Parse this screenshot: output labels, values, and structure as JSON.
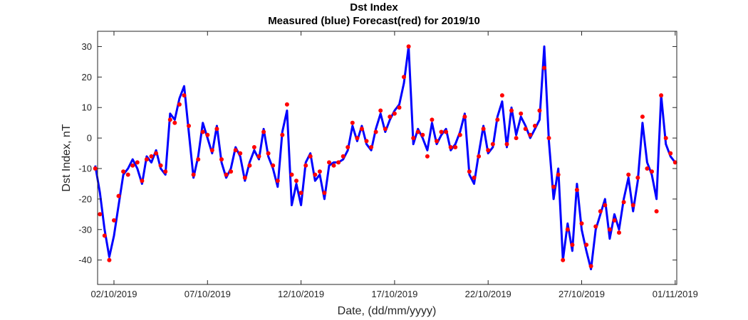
{
  "chart_data": {
    "type": "line",
    "title": "Dst Index",
    "subtitle": "Measured (blue) Forecast(red) for 2019/10",
    "xlabel": "Date, (dd/mm/yyyy)",
    "ylabel": "Dst Index, nT",
    "xlim": [
      "2019-10-01",
      "2019-11-01"
    ],
    "ylim": [
      -48,
      35
    ],
    "xticks": [
      "02/10/2019",
      "07/10/2019",
      "12/10/2019",
      "17/10/2019",
      "22/10/2019",
      "27/10/2019",
      "01/11/2019"
    ],
    "yticks": [
      -40,
      -30,
      -20,
      -10,
      0,
      10,
      20,
      30
    ],
    "grid": false,
    "series": [
      {
        "name": "Measured",
        "color": "#0000ff",
        "style": "line",
        "points": [
          [
            "2019-10-01 00:00",
            -9
          ],
          [
            "2019-10-01 06:00",
            -18
          ],
          [
            "2019-10-01 12:00",
            -30
          ],
          [
            "2019-10-01 18:00",
            -39
          ],
          [
            "2019-10-02 00:00",
            -32
          ],
          [
            "2019-10-02 06:00",
            -22
          ],
          [
            "2019-10-02 12:00",
            -12
          ],
          [
            "2019-10-02 18:00",
            -10
          ],
          [
            "2019-10-03 00:00",
            -7
          ],
          [
            "2019-10-03 06:00",
            -10
          ],
          [
            "2019-10-03 12:00",
            -15
          ],
          [
            "2019-10-03 18:00",
            -6
          ],
          [
            "2019-10-04 00:00",
            -8
          ],
          [
            "2019-10-04 06:00",
            -4
          ],
          [
            "2019-10-04 12:00",
            -10
          ],
          [
            "2019-10-04 18:00",
            -12
          ],
          [
            "2019-10-05 00:00",
            8
          ],
          [
            "2019-10-05 06:00",
            6
          ],
          [
            "2019-10-05 12:00",
            13
          ],
          [
            "2019-10-05 18:00",
            17
          ],
          [
            "2019-10-06 00:00",
            2
          ],
          [
            "2019-10-06 06:00",
            -13
          ],
          [
            "2019-10-06 12:00",
            -6
          ],
          [
            "2019-10-06 18:00",
            5
          ],
          [
            "2019-10-07 00:00",
            0
          ],
          [
            "2019-10-07 06:00",
            -5
          ],
          [
            "2019-10-07 12:00",
            4
          ],
          [
            "2019-10-07 18:00",
            -8
          ],
          [
            "2019-10-08 00:00",
            -13
          ],
          [
            "2019-10-08 06:00",
            -10
          ],
          [
            "2019-10-08 12:00",
            -3
          ],
          [
            "2019-10-08 18:00",
            -6
          ],
          [
            "2019-10-09 00:00",
            -14
          ],
          [
            "2019-10-09 06:00",
            -8
          ],
          [
            "2019-10-09 12:00",
            -4
          ],
          [
            "2019-10-09 18:00",
            -7
          ],
          [
            "2019-10-10 00:00",
            3
          ],
          [
            "2019-10-10 06:00",
            -6
          ],
          [
            "2019-10-10 12:00",
            -10
          ],
          [
            "2019-10-10 18:00",
            -16
          ],
          [
            "2019-10-11 00:00",
            2
          ],
          [
            "2019-10-11 06:00",
            9
          ],
          [
            "2019-10-11 12:00",
            -22
          ],
          [
            "2019-10-11 18:00",
            -15
          ],
          [
            "2019-10-12 00:00",
            -22
          ],
          [
            "2019-10-12 06:00",
            -8
          ],
          [
            "2019-10-12 12:00",
            -5
          ],
          [
            "2019-10-12 18:00",
            -14
          ],
          [
            "2019-10-13 00:00",
            -12
          ],
          [
            "2019-10-13 06:00",
            -20
          ],
          [
            "2019-10-13 12:00",
            -9
          ],
          [
            "2019-10-13 18:00",
            -8
          ],
          [
            "2019-10-14 00:00",
            -8
          ],
          [
            "2019-10-14 06:00",
            -7
          ],
          [
            "2019-10-14 12:00",
            -4
          ],
          [
            "2019-10-14 18:00",
            4
          ],
          [
            "2019-10-15 00:00",
            -1
          ],
          [
            "2019-10-15 06:00",
            4
          ],
          [
            "2019-10-15 12:00",
            -2
          ],
          [
            "2019-10-15 18:00",
            -4
          ],
          [
            "2019-10-16 00:00",
            3
          ],
          [
            "2019-10-16 06:00",
            8
          ],
          [
            "2019-10-16 12:00",
            2
          ],
          [
            "2019-10-16 18:00",
            6
          ],
          [
            "2019-10-17 00:00",
            9
          ],
          [
            "2019-10-17 06:00",
            11
          ],
          [
            "2019-10-17 12:00",
            18
          ],
          [
            "2019-10-17 18:00",
            30
          ],
          [
            "2019-10-18 00:00",
            -2
          ],
          [
            "2019-10-18 06:00",
            3
          ],
          [
            "2019-10-18 12:00",
            0
          ],
          [
            "2019-10-18 18:00",
            -4
          ],
          [
            "2019-10-19 00:00",
            5
          ],
          [
            "2019-10-19 06:00",
            -2
          ],
          [
            "2019-10-19 12:00",
            1
          ],
          [
            "2019-10-19 18:00",
            3
          ],
          [
            "2019-10-20 00:00",
            -4
          ],
          [
            "2019-10-20 06:00",
            -2
          ],
          [
            "2019-10-20 12:00",
            2
          ],
          [
            "2019-10-20 18:00",
            8
          ],
          [
            "2019-10-21 00:00",
            -12
          ],
          [
            "2019-10-21 06:00",
            -15
          ],
          [
            "2019-10-21 12:00",
            -5
          ],
          [
            "2019-10-21 18:00",
            4
          ],
          [
            "2019-10-22 00:00",
            -5
          ],
          [
            "2019-10-22 06:00",
            -3
          ],
          [
            "2019-10-22 12:00",
            7
          ],
          [
            "2019-10-22 18:00",
            12
          ],
          [
            "2019-10-23 00:00",
            -3
          ],
          [
            "2019-10-23 06:00",
            10
          ],
          [
            "2019-10-23 12:00",
            1
          ],
          [
            "2019-10-23 18:00",
            7
          ],
          [
            "2019-10-24 00:00",
            4
          ],
          [
            "2019-10-24 06:00",
            0
          ],
          [
            "2019-10-24 12:00",
            3
          ],
          [
            "2019-10-24 18:00",
            6
          ],
          [
            "2019-10-25 00:00",
            30
          ],
          [
            "2019-10-25 06:00",
            -1
          ],
          [
            "2019-10-25 12:00",
            -20
          ],
          [
            "2019-10-25 18:00",
            -10
          ],
          [
            "2019-10-26 00:00",
            -40
          ],
          [
            "2019-10-26 06:00",
            -28
          ],
          [
            "2019-10-26 12:00",
            -37
          ],
          [
            "2019-10-26 18:00",
            -15
          ],
          [
            "2019-10-27 00:00",
            -30
          ],
          [
            "2019-10-27 06:00",
            -37
          ],
          [
            "2019-10-27 12:00",
            -43
          ],
          [
            "2019-10-27 18:00",
            -30
          ],
          [
            "2019-10-28 00:00",
            -25
          ],
          [
            "2019-10-28 06:00",
            -20
          ],
          [
            "2019-10-28 12:00",
            -33
          ],
          [
            "2019-10-28 18:00",
            -25
          ],
          [
            "2019-10-29 00:00",
            -30
          ],
          [
            "2019-10-29 06:00",
            -20
          ],
          [
            "2019-10-29 12:00",
            -13
          ],
          [
            "2019-10-29 18:00",
            -24
          ],
          [
            "2019-10-30 00:00",
            -14
          ],
          [
            "2019-10-30 06:00",
            5
          ],
          [
            "2019-10-30 12:00",
            -8
          ],
          [
            "2019-10-30 18:00",
            -12
          ],
          [
            "2019-10-31 00:00",
            -20
          ],
          [
            "2019-10-31 06:00",
            14
          ],
          [
            "2019-10-31 12:00",
            -2
          ],
          [
            "2019-10-31 18:00",
            -6
          ],
          [
            "2019-11-01 00:00",
            -8
          ]
        ]
      },
      {
        "name": "Forecast",
        "color": "#ff0000",
        "style": "markers",
        "points": [
          [
            "2019-10-01 00:00",
            -10
          ],
          [
            "2019-10-01 06:00",
            -25
          ],
          [
            "2019-10-01 12:00",
            -32
          ],
          [
            "2019-10-01 18:00",
            -40
          ],
          [
            "2019-10-02 00:00",
            -27
          ],
          [
            "2019-10-02 06:00",
            -19
          ],
          [
            "2019-10-02 12:00",
            -11
          ],
          [
            "2019-10-02 18:00",
            -12
          ],
          [
            "2019-10-03 00:00",
            -9
          ],
          [
            "2019-10-03 06:00",
            -8
          ],
          [
            "2019-10-03 12:00",
            -14
          ],
          [
            "2019-10-03 18:00",
            -7
          ],
          [
            "2019-10-04 00:00",
            -6
          ],
          [
            "2019-10-04 06:00",
            -5
          ],
          [
            "2019-10-04 12:00",
            -9
          ],
          [
            "2019-10-04 18:00",
            -11
          ],
          [
            "2019-10-05 00:00",
            6
          ],
          [
            "2019-10-05 06:00",
            5
          ],
          [
            "2019-10-05 12:00",
            11
          ],
          [
            "2019-10-05 18:00",
            14
          ],
          [
            "2019-10-06 00:00",
            4
          ],
          [
            "2019-10-06 06:00",
            -12
          ],
          [
            "2019-10-06 12:00",
            -7
          ],
          [
            "2019-10-06 18:00",
            2
          ],
          [
            "2019-10-07 00:00",
            1
          ],
          [
            "2019-10-07 06:00",
            -4
          ],
          [
            "2019-10-07 12:00",
            3
          ],
          [
            "2019-10-07 18:00",
            -7
          ],
          [
            "2019-10-08 00:00",
            -12
          ],
          [
            "2019-10-08 06:00",
            -11
          ],
          [
            "2019-10-08 12:00",
            -4
          ],
          [
            "2019-10-08 18:00",
            -5
          ],
          [
            "2019-10-09 00:00",
            -13
          ],
          [
            "2019-10-09 06:00",
            -9
          ],
          [
            "2019-10-09 12:00",
            -3
          ],
          [
            "2019-10-09 18:00",
            -6
          ],
          [
            "2019-10-10 00:00",
            2
          ],
          [
            "2019-10-10 06:00",
            -5
          ],
          [
            "2019-10-10 12:00",
            -9
          ],
          [
            "2019-10-10 18:00",
            -14
          ],
          [
            "2019-10-11 00:00",
            1
          ],
          [
            "2019-10-11 06:00",
            11
          ],
          [
            "2019-10-11 12:00",
            -12
          ],
          [
            "2019-10-11 18:00",
            -14
          ],
          [
            "2019-10-12 00:00",
            -18
          ],
          [
            "2019-10-12 06:00",
            -9
          ],
          [
            "2019-10-12 12:00",
            -6
          ],
          [
            "2019-10-12 18:00",
            -12
          ],
          [
            "2019-10-13 00:00",
            -11
          ],
          [
            "2019-10-13 06:00",
            -18
          ],
          [
            "2019-10-13 12:00",
            -8
          ],
          [
            "2019-10-13 18:00",
            -9
          ],
          [
            "2019-10-14 00:00",
            -8
          ],
          [
            "2019-10-14 06:00",
            -6
          ],
          [
            "2019-10-14 12:00",
            -3
          ],
          [
            "2019-10-14 18:00",
            5
          ],
          [
            "2019-10-15 00:00",
            0
          ],
          [
            "2019-10-15 06:00",
            3
          ],
          [
            "2019-10-15 12:00",
            -1
          ],
          [
            "2019-10-15 18:00",
            -3
          ],
          [
            "2019-10-16 00:00",
            2
          ],
          [
            "2019-10-16 06:00",
            9
          ],
          [
            "2019-10-16 12:00",
            3
          ],
          [
            "2019-10-16 18:00",
            7
          ],
          [
            "2019-10-17 00:00",
            8
          ],
          [
            "2019-10-17 06:00",
            10
          ],
          [
            "2019-10-17 12:00",
            20
          ],
          [
            "2019-10-17 18:00",
            30
          ],
          [
            "2019-10-18 00:00",
            0
          ],
          [
            "2019-10-18 06:00",
            2
          ],
          [
            "2019-10-18 12:00",
            1
          ],
          [
            "2019-10-18 18:00",
            -6
          ],
          [
            "2019-10-19 00:00",
            6
          ],
          [
            "2019-10-19 06:00",
            -1
          ],
          [
            "2019-10-19 12:00",
            2
          ],
          [
            "2019-10-19 18:00",
            2
          ],
          [
            "2019-10-20 00:00",
            -3
          ],
          [
            "2019-10-20 06:00",
            -3
          ],
          [
            "2019-10-20 12:00",
            1
          ],
          [
            "2019-10-20 18:00",
            7
          ],
          [
            "2019-10-21 00:00",
            -11
          ],
          [
            "2019-10-21 06:00",
            -13
          ],
          [
            "2019-10-21 12:00",
            -6
          ],
          [
            "2019-10-21 18:00",
            3
          ],
          [
            "2019-10-22 00:00",
            -4
          ],
          [
            "2019-10-22 06:00",
            -2
          ],
          [
            "2019-10-22 12:00",
            6
          ],
          [
            "2019-10-22 18:00",
            14
          ],
          [
            "2019-10-23 00:00",
            -2
          ],
          [
            "2019-10-23 06:00",
            9
          ],
          [
            "2019-10-23 12:00",
            0
          ],
          [
            "2019-10-23 18:00",
            8
          ],
          [
            "2019-10-24 00:00",
            3
          ],
          [
            "2019-10-24 06:00",
            1
          ],
          [
            "2019-10-24 12:00",
            4
          ],
          [
            "2019-10-24 18:00",
            9
          ],
          [
            "2019-10-25 00:00",
            23
          ],
          [
            "2019-10-25 06:00",
            0
          ],
          [
            "2019-10-25 12:00",
            -16
          ],
          [
            "2019-10-25 18:00",
            -12
          ],
          [
            "2019-10-26 00:00",
            -40
          ],
          [
            "2019-10-26 06:00",
            -30
          ],
          [
            "2019-10-26 12:00",
            -35
          ],
          [
            "2019-10-26 18:00",
            -17
          ],
          [
            "2019-10-27 00:00",
            -28
          ],
          [
            "2019-10-27 06:00",
            -35
          ],
          [
            "2019-10-27 12:00",
            -42
          ],
          [
            "2019-10-27 18:00",
            -29
          ],
          [
            "2019-10-28 00:00",
            -24
          ],
          [
            "2019-10-28 06:00",
            -22
          ],
          [
            "2019-10-28 12:00",
            -30
          ],
          [
            "2019-10-28 18:00",
            -27
          ],
          [
            "2019-10-29 00:00",
            -31
          ],
          [
            "2019-10-29 06:00",
            -21
          ],
          [
            "2019-10-29 12:00",
            -12
          ],
          [
            "2019-10-29 18:00",
            -22
          ],
          [
            "2019-10-30 00:00",
            -13
          ],
          [
            "2019-10-30 06:00",
            7
          ],
          [
            "2019-10-30 12:00",
            -10
          ],
          [
            "2019-10-30 18:00",
            -11
          ],
          [
            "2019-10-31 00:00",
            -24
          ],
          [
            "2019-10-31 06:00",
            14
          ],
          [
            "2019-10-31 12:00",
            0
          ],
          [
            "2019-10-31 18:00",
            -5
          ],
          [
            "2019-11-01 00:00",
            -8
          ]
        ]
      }
    ]
  }
}
